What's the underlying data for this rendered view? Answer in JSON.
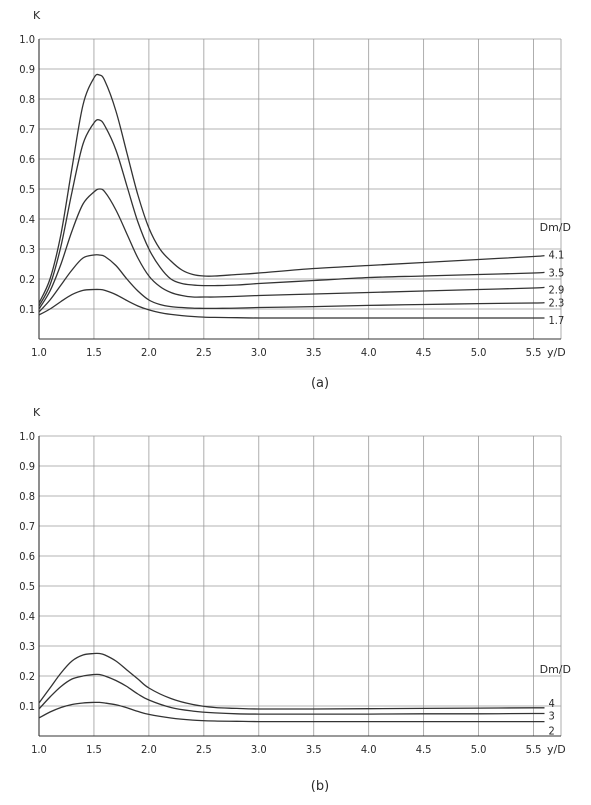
{
  "chart_data": [
    {
      "type": "line",
      "ylabel": "K",
      "xlabel": "y/D",
      "legend_title": "Dm/D",
      "caption": "(a)",
      "xlim": [
        1.0,
        5.75
      ],
      "ylim": [
        0,
        1.0
      ],
      "xticks": [
        "1.0",
        "1.5",
        "2.0",
        "2.5",
        "3.0",
        "3.5",
        "4.0",
        "4.5",
        "5.0",
        "5.5"
      ],
      "yticks": [
        "0.1",
        "0.2",
        "0.3",
        "0.4",
        "0.5",
        "0.6",
        "0.7",
        "0.8",
        "0.9",
        "1.0"
      ],
      "grid": true,
      "series": [
        {
          "name": "4.1",
          "x": [
            1.0,
            1.1,
            1.2,
            1.3,
            1.4,
            1.5,
            1.55,
            1.6,
            1.7,
            1.8,
            1.9,
            2.0,
            2.1,
            2.2,
            2.3,
            2.4,
            2.5,
            2.6,
            2.8,
            3.0,
            3.5,
            4.0,
            4.5,
            5.0,
            5.5,
            5.6
          ],
          "y": [
            0.12,
            0.2,
            0.35,
            0.57,
            0.78,
            0.87,
            0.88,
            0.86,
            0.76,
            0.62,
            0.48,
            0.37,
            0.3,
            0.26,
            0.23,
            0.215,
            0.21,
            0.21,
            0.215,
            0.22,
            0.235,
            0.245,
            0.255,
            0.265,
            0.275,
            0.278
          ]
        },
        {
          "name": "3.5",
          "x": [
            1.0,
            1.1,
            1.2,
            1.3,
            1.4,
            1.5,
            1.55,
            1.6,
            1.7,
            1.8,
            1.9,
            2.0,
            2.1,
            2.2,
            2.3,
            2.4,
            2.5,
            2.6,
            2.8,
            3.0,
            3.5,
            4.0,
            4.5,
            5.0,
            5.5,
            5.6
          ],
          "y": [
            0.11,
            0.18,
            0.31,
            0.49,
            0.65,
            0.72,
            0.73,
            0.71,
            0.63,
            0.51,
            0.39,
            0.3,
            0.24,
            0.2,
            0.185,
            0.18,
            0.178,
            0.178,
            0.18,
            0.185,
            0.195,
            0.205,
            0.21,
            0.215,
            0.22,
            0.222
          ]
        },
        {
          "name": "2.9",
          "x": [
            1.0,
            1.1,
            1.2,
            1.3,
            1.4,
            1.5,
            1.55,
            1.6,
            1.7,
            1.8,
            1.9,
            2.0,
            2.1,
            2.2,
            2.3,
            2.4,
            2.5,
            2.6,
            2.8,
            3.0,
            3.5,
            4.0,
            4.5,
            5.0,
            5.5,
            5.6
          ],
          "y": [
            0.1,
            0.16,
            0.25,
            0.36,
            0.45,
            0.49,
            0.5,
            0.49,
            0.43,
            0.35,
            0.27,
            0.21,
            0.175,
            0.155,
            0.145,
            0.14,
            0.14,
            0.14,
            0.142,
            0.145,
            0.15,
            0.155,
            0.16,
            0.165,
            0.17,
            0.172
          ]
        },
        {
          "name": "2.3",
          "x": [
            1.0,
            1.1,
            1.2,
            1.3,
            1.4,
            1.5,
            1.55,
            1.6,
            1.7,
            1.8,
            1.9,
            2.0,
            2.1,
            2.2,
            2.3,
            2.4,
            2.5,
            2.6,
            2.8,
            3.0,
            3.5,
            4.0,
            4.5,
            5.0,
            5.5,
            5.6
          ],
          "y": [
            0.09,
            0.13,
            0.18,
            0.23,
            0.27,
            0.28,
            0.28,
            0.275,
            0.245,
            0.2,
            0.16,
            0.13,
            0.115,
            0.108,
            0.105,
            0.103,
            0.102,
            0.102,
            0.103,
            0.105,
            0.108,
            0.112,
            0.115,
            0.118,
            0.12,
            0.121
          ]
        },
        {
          "name": "1.7",
          "x": [
            1.0,
            1.1,
            1.2,
            1.3,
            1.4,
            1.5,
            1.55,
            1.6,
            1.7,
            1.8,
            1.9,
            2.0,
            2.1,
            2.2,
            2.3,
            2.4,
            2.5,
            2.6,
            2.8,
            3.0,
            3.5,
            4.0,
            4.5,
            5.0,
            5.5,
            5.6
          ],
          "y": [
            0.08,
            0.1,
            0.125,
            0.148,
            0.162,
            0.165,
            0.165,
            0.162,
            0.148,
            0.128,
            0.11,
            0.097,
            0.088,
            0.082,
            0.078,
            0.075,
            0.073,
            0.072,
            0.071,
            0.07,
            0.07,
            0.07,
            0.07,
            0.07,
            0.07,
            0.07
          ]
        }
      ]
    },
    {
      "type": "line",
      "ylabel": "K",
      "xlabel": "y/D",
      "legend_title": "Dm/D",
      "caption": "(b)",
      "xlim": [
        1.0,
        5.75
      ],
      "ylim": [
        0,
        1.0
      ],
      "xticks": [
        "1.0",
        "1.5",
        "2.0",
        "2.5",
        "3.0",
        "3.5",
        "4.0",
        "4.5",
        "5.0",
        "5.5"
      ],
      "yticks": [
        "0.1",
        "0.2",
        "0.3",
        "0.4",
        "0.5",
        "0.6",
        "0.7",
        "0.8",
        "0.9",
        "1.0"
      ],
      "grid": true,
      "series": [
        {
          "name": "4",
          "x": [
            1.0,
            1.1,
            1.2,
            1.3,
            1.4,
            1.5,
            1.55,
            1.6,
            1.7,
            1.8,
            1.9,
            2.0,
            2.2,
            2.4,
            2.6,
            2.8,
            3.0,
            3.5,
            4.0,
            4.5,
            5.0,
            5.5,
            5.6
          ],
          "y": [
            0.11,
            0.16,
            0.21,
            0.25,
            0.27,
            0.275,
            0.275,
            0.27,
            0.25,
            0.22,
            0.19,
            0.16,
            0.125,
            0.105,
            0.095,
            0.092,
            0.09,
            0.09,
            0.091,
            0.092,
            0.093,
            0.094,
            0.094
          ]
        },
        {
          "name": "3",
          "x": [
            1.0,
            1.1,
            1.2,
            1.3,
            1.4,
            1.5,
            1.55,
            1.6,
            1.7,
            1.8,
            1.9,
            2.0,
            2.2,
            2.4,
            2.6,
            2.8,
            3.0,
            3.5,
            4.0,
            4.5,
            5.0,
            5.5,
            5.6
          ],
          "y": [
            0.09,
            0.13,
            0.165,
            0.19,
            0.2,
            0.205,
            0.205,
            0.2,
            0.185,
            0.165,
            0.14,
            0.12,
            0.095,
            0.083,
            0.077,
            0.074,
            0.073,
            0.073,
            0.073,
            0.074,
            0.074,
            0.075,
            0.075
          ]
        },
        {
          "name": "2",
          "x": [
            1.0,
            1.1,
            1.2,
            1.3,
            1.4,
            1.5,
            1.55,
            1.6,
            1.7,
            1.8,
            1.9,
            2.0,
            2.2,
            2.4,
            2.6,
            2.8,
            3.0,
            3.5,
            4.0,
            4.5,
            5.0,
            5.5,
            5.6
          ],
          "y": [
            0.06,
            0.08,
            0.095,
            0.105,
            0.11,
            0.112,
            0.112,
            0.11,
            0.104,
            0.094,
            0.082,
            0.072,
            0.06,
            0.053,
            0.05,
            0.049,
            0.048,
            0.048,
            0.048,
            0.048,
            0.048,
            0.048,
            0.048
          ]
        }
      ]
    }
  ]
}
